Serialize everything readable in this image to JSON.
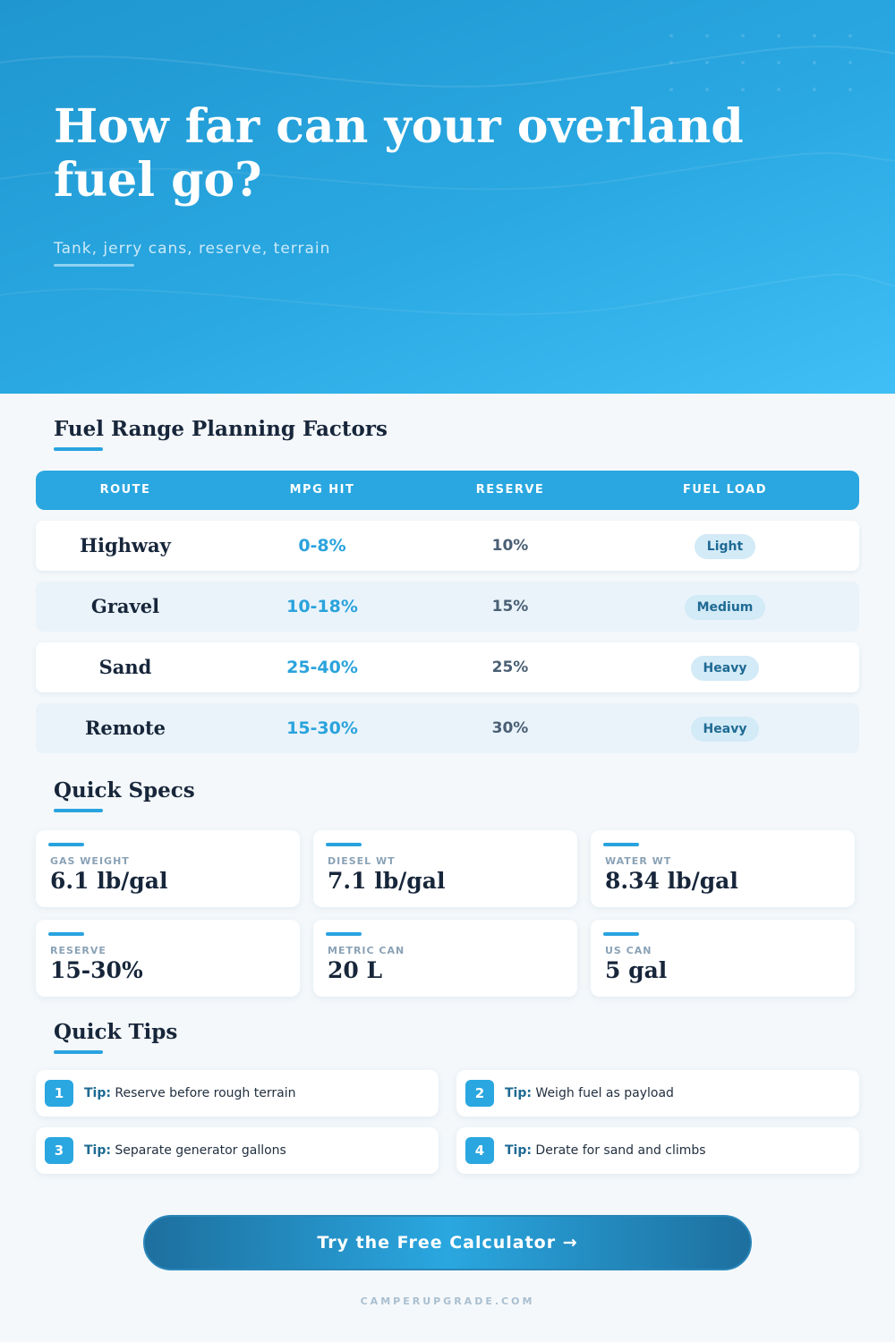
{
  "hero": {
    "title": "How far can your overland fuel go?",
    "subtitle": "Tank, jerry cans, reserve, terrain"
  },
  "factors": {
    "title": "Fuel Range Planning Factors",
    "headers": [
      "ROUTE",
      "MPG HIT",
      "RESERVE",
      "FUEL LOAD"
    ],
    "rows": [
      {
        "route": "Highway",
        "mpg_hit": "0-8%",
        "reserve": "10%",
        "fuel_load": "Light"
      },
      {
        "route": "Gravel",
        "mpg_hit": "10-18%",
        "reserve": "15%",
        "fuel_load": "Medium"
      },
      {
        "route": "Sand",
        "mpg_hit": "25-40%",
        "reserve": "25%",
        "fuel_load": "Heavy"
      },
      {
        "route": "Remote",
        "mpg_hit": "15-30%",
        "reserve": "30%",
        "fuel_load": "Heavy"
      }
    ]
  },
  "specs": {
    "title": "Quick Specs",
    "items": [
      {
        "label": "GAS WEIGHT",
        "value": "6.1 lb/gal"
      },
      {
        "label": "DIESEL WT",
        "value": "7.1 lb/gal"
      },
      {
        "label": "WATER WT",
        "value": "8.34 lb/gal"
      },
      {
        "label": "RESERVE",
        "value": "15-30%"
      },
      {
        "label": "METRIC CAN",
        "value": "20 L"
      },
      {
        "label": "US CAN",
        "value": "5 gal"
      }
    ]
  },
  "tips": {
    "title": "Quick Tips",
    "prefix": "Tip:",
    "items": [
      {
        "num": "1",
        "text": "Reserve before rough terrain"
      },
      {
        "num": "2",
        "text": "Weigh fuel as payload"
      },
      {
        "num": "3",
        "text": "Separate generator gallons"
      },
      {
        "num": "4",
        "text": "Derate for sand and climbs"
      }
    ]
  },
  "cta": {
    "label": "Try the Free Calculator →"
  },
  "footer": {
    "site": "CAMPERUPGRADE.COM"
  },
  "colors": {
    "accent": "#2aa7e0",
    "dark_accent": "#1e6a93",
    "heading": "#17263a"
  }
}
